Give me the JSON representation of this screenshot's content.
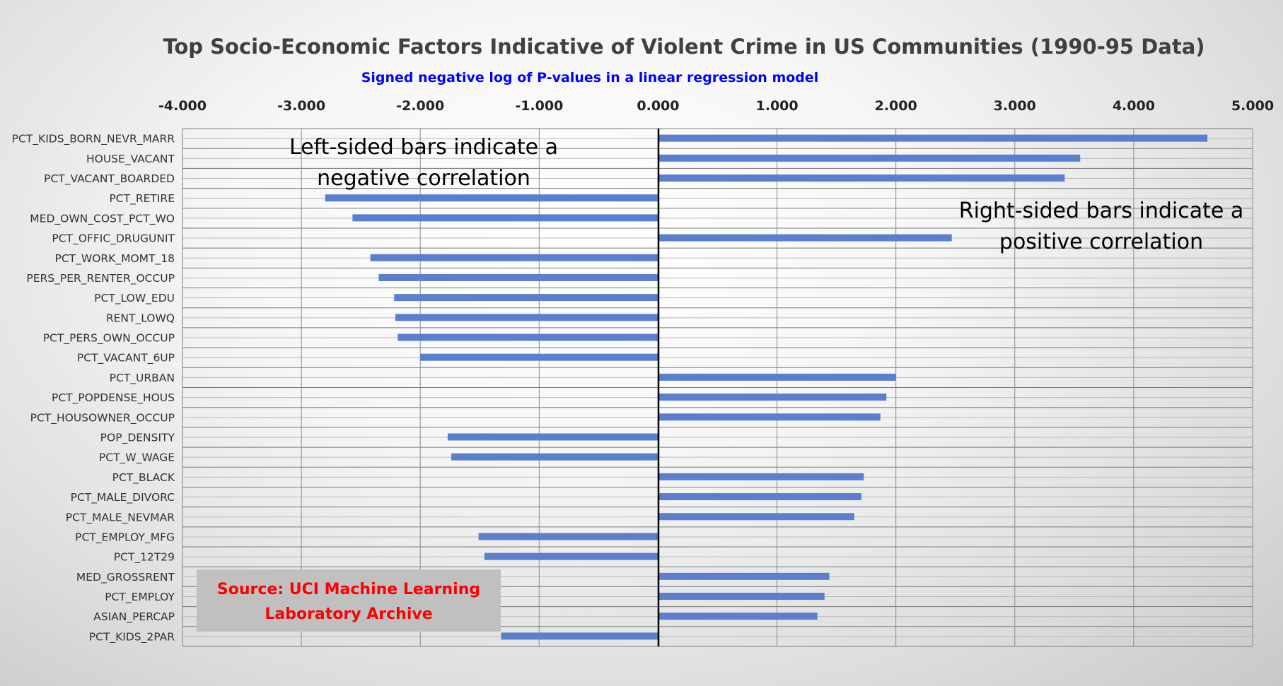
{
  "chart_data": {
    "type": "bar",
    "orientation": "horizontal",
    "title": "Top Socio-Economic Factors Indicative of Violent Crime in US Communities (1990-95 Data)",
    "subtitle": "Signed negative log of P-values in a linear regression model",
    "xlim": [
      -4,
      5
    ],
    "x_ticks": [
      "-4.000",
      "-3.000",
      "-2.000",
      "-1.000",
      "0.000",
      "1.000",
      "2.000",
      "3.000",
      "4.000",
      "5.000"
    ],
    "x_tick_values": [
      -4,
      -3,
      -2,
      -1,
      0,
      1,
      2,
      3,
      4,
      5
    ],
    "x_axis_position": "top",
    "grid": true,
    "bar_color": "#5b7fcf",
    "categories": [
      "PCT_KIDS_BORN_NEVR_MARR",
      "HOUSE_VACANT",
      "PCT_VACANT_BOARDED",
      "PCT_RETIRE",
      "MED_OWN_COST_PCT_WO",
      "PCT_OFFIC_DRUGUNIT",
      "PCT_WORK_MOMT_18",
      "PERS_PER_RENTER_OCCUP",
      "PCT_LOW_EDU",
      "RENT_LOWQ",
      "PCT_PERS_OWN_OCCUP",
      "PCT_VACANT_6UP",
      "PCT_URBAN",
      "PCT_POPDENSE_HOUS",
      "PCT_HOUSOWNER_OCCUP",
      "POP_DENSITY",
      "PCT_W_WAGE",
      "PCT_BLACK",
      "PCT_MALE_DIVORC",
      "PCT_MALE_NEVMAR",
      "PCT_EMPLOY_MFG",
      "PCT_12T29",
      "MED_GROSSRENT",
      "PCT_EMPLOY",
      "ASIAN_PERCAP",
      "PCT_KIDS_2PAR"
    ],
    "values": [
      4.62,
      3.55,
      3.42,
      -2.8,
      -2.57,
      2.47,
      -2.42,
      -2.35,
      -2.22,
      -2.21,
      -2.19,
      -2.0,
      2.0,
      1.92,
      1.87,
      -1.77,
      -1.74,
      1.73,
      1.71,
      1.65,
      -1.51,
      -1.46,
      1.44,
      1.4,
      1.34,
      -1.32
    ],
    "annotations": {
      "left_line1": "Left-sided bars indicate a",
      "left_line2": "negative correlation",
      "right_line1": "Right-sided bars indicate a",
      "right_line2": "positive correlation"
    },
    "source_line1": "Source: UCI Machine Learning",
    "source_line2": "Laboratory Archive",
    "source_box_color": "#c0c0c0"
  }
}
